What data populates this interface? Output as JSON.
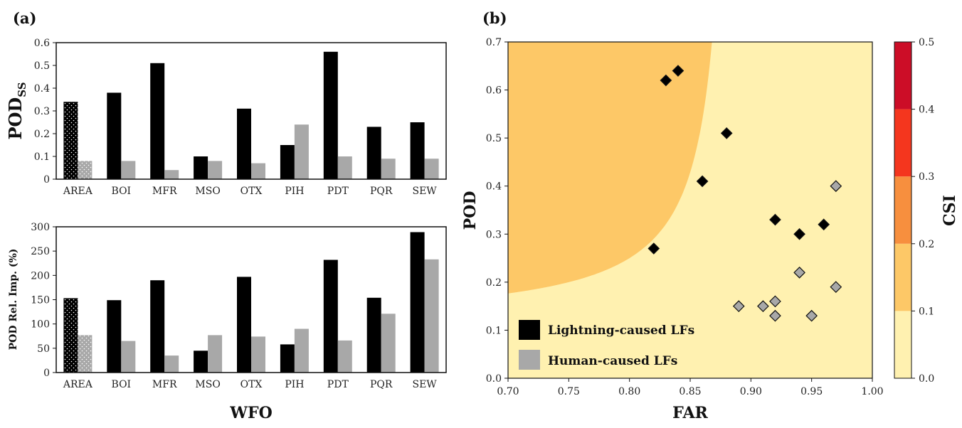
{
  "panels": {
    "a_label": "(a)",
    "b_label": "(b)"
  },
  "colors": {
    "lightning": "#000000",
    "human": "#a8a8a8",
    "csi_bands": [
      "#fff1b0",
      "#fdc867",
      "#f78f3e",
      "#f4361e",
      "#cc0d27"
    ]
  },
  "chart_data": [
    {
      "id": "pod_ss",
      "type": "bar",
      "ylabel": "POD",
      "ylabel_sub": "SS",
      "categories": [
        "AREA",
        "BOI",
        "MFR",
        "MSO",
        "OTX",
        "PIH",
        "PDT",
        "PQR",
        "SEW"
      ],
      "series": [
        {
          "name": "Lightning-caused LFs",
          "values": [
            0.34,
            0.38,
            0.51,
            0.1,
            0.31,
            0.15,
            0.56,
            0.23,
            0.25
          ]
        },
        {
          "name": "Human-caused LFs",
          "values": [
            0.08,
            0.08,
            0.04,
            0.08,
            0.07,
            0.24,
            0.1,
            0.09,
            0.09
          ]
        }
      ],
      "ylim": [
        0,
        0.6
      ],
      "yticks": [
        "0",
        "0.1",
        "0.2",
        "0.3",
        "0.4",
        "0.5",
        "0.6"
      ],
      "hatched_category": "AREA"
    },
    {
      "id": "pod_rel_imp",
      "type": "bar",
      "ylabel": "POD Rel. Imp. (%)",
      "xlabel": "WFO",
      "categories": [
        "AREA",
        "BOI",
        "MFR",
        "MSO",
        "OTX",
        "PIH",
        "PDT",
        "PQR",
        "SEW"
      ],
      "series": [
        {
          "name": "Lightning-caused LFs",
          "values": [
            153,
            149,
            190,
            45,
            197,
            58,
            232,
            154,
            289
          ]
        },
        {
          "name": "Human-caused LFs",
          "values": [
            77,
            65,
            35,
            77,
            74,
            90,
            66,
            121,
            233
          ]
        }
      ],
      "ylim": [
        0,
        300
      ],
      "yticks": [
        "0",
        "50",
        "100",
        "150",
        "200",
        "250",
        "300"
      ],
      "hatched_category": "AREA"
    },
    {
      "id": "performance_diagram",
      "type": "scatter",
      "xlabel": "FAR",
      "ylabel": "POD",
      "xlim": [
        0.7,
        1.0
      ],
      "ylim": [
        0,
        0.7
      ],
      "xticks": [
        "0.70",
        "0.75",
        "0.80",
        "0.85",
        "0.90",
        "0.95",
        "1.00"
      ],
      "yticks": [
        "0.0",
        "0.1",
        "0.2",
        "0.3",
        "0.4",
        "0.5",
        "0.6",
        "0.7"
      ],
      "background": "CSI contours",
      "series": [
        {
          "name": "Lightning-caused LFs",
          "x": [
            0.83,
            0.84,
            0.88,
            0.86,
            0.92,
            0.94,
            0.96,
            0.82
          ],
          "y": [
            0.62,
            0.64,
            0.51,
            0.41,
            0.33,
            0.3,
            0.32,
            0.27
          ]
        },
        {
          "name": "Human-caused LFs",
          "x": [
            0.97,
            0.94,
            0.97,
            0.89,
            0.91,
            0.92,
            0.92,
            0.95
          ],
          "y": [
            0.4,
            0.22,
            0.19,
            0.15,
            0.15,
            0.16,
            0.13,
            0.13
          ]
        }
      ],
      "legend": [
        "Lightning-caused LFs",
        "Human-caused LFs"
      ],
      "legend_position": "bottom-left"
    },
    {
      "id": "csi_colorbar",
      "type": "colorbar",
      "label": "CSI",
      "levels": [
        0.0,
        0.1,
        0.2,
        0.3,
        0.4,
        0.5
      ],
      "ticks": [
        "0.0",
        "0.1",
        "0.2",
        "0.3",
        "0.4",
        "0.5"
      ]
    }
  ]
}
